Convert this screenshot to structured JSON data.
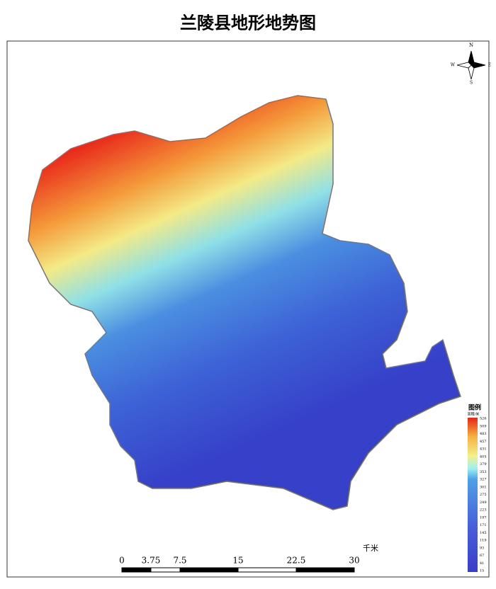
{
  "title": "兰陵县地形地势图",
  "compass": {
    "north": "N",
    "east": "E",
    "south": "S",
    "west": "W"
  },
  "legend": {
    "title": "图例",
    "unit": "高程/米",
    "values": [
      526,
      509,
      483,
      457,
      431,
      405,
      379,
      353,
      327,
      301,
      275,
      249,
      223,
      197,
      171,
      145,
      119,
      93,
      67,
      41,
      15
    ]
  },
  "scale_bar": {
    "ticks": [
      0,
      3.75,
      7.5,
      15,
      22.5,
      30
    ],
    "unit": "千米"
  }
}
